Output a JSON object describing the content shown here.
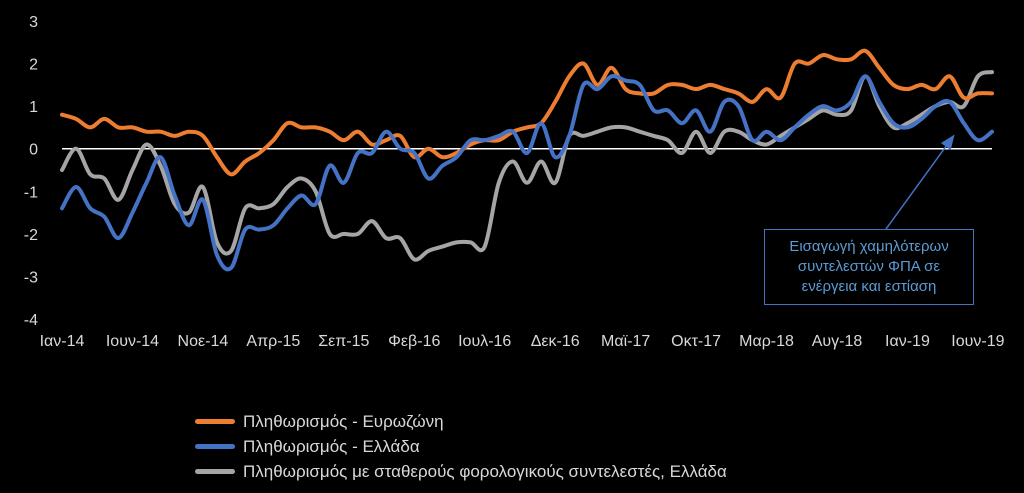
{
  "chart_data": {
    "type": "line",
    "title": "",
    "xlabel": "",
    "ylabel": "",
    "ylim": [
      -4,
      3
    ],
    "yticks": [
      -4,
      -3,
      -2,
      -1,
      0,
      1,
      2,
      3
    ],
    "xtick_labels": [
      "Ιαν-14",
      "Ιουν-14",
      "Νοε-14",
      "Απρ-15",
      "Σεπ-15",
      "Φεβ-16",
      "Ιουλ-16",
      "Δεκ-16",
      "Μαϊ-17",
      "Οκτ-17",
      "Μαρ-18",
      "Αυγ-18",
      "Ιαν-19",
      "Ιουν-19"
    ],
    "x": [
      "Ιαν-14",
      "Φεβ-14",
      "Μαρ-14",
      "Απρ-14",
      "Μαϊ-14",
      "Ιουν-14",
      "Ιουλ-14",
      "Αυγ-14",
      "Σεπ-14",
      "Οκτ-14",
      "Νοε-14",
      "Δεκ-14",
      "Ιαν-15",
      "Φεβ-15",
      "Μαρ-15",
      "Απρ-15",
      "Μαϊ-15",
      "Ιουν-15",
      "Ιουλ-15",
      "Αυγ-15",
      "Σεπ-15",
      "Οκτ-15",
      "Νοε-15",
      "Δεκ-15",
      "Ιαν-16",
      "Φεβ-16",
      "Μαρ-16",
      "Απρ-16",
      "Μαϊ-16",
      "Ιουν-16",
      "Ιουλ-16",
      "Αυγ-16",
      "Σεπ-16",
      "Οκτ-16",
      "Νοε-16",
      "Δεκ-16",
      "Ιαν-17",
      "Φεβ-17",
      "Μαρ-17",
      "Απρ-17",
      "Μαϊ-17",
      "Ιουν-17",
      "Ιουλ-17",
      "Αυγ-17",
      "Σεπ-17",
      "Οκτ-17",
      "Νοε-17",
      "Δεκ-17",
      "Ιαν-18",
      "Φεβ-18",
      "Μαρ-18",
      "Απρ-18",
      "Μαϊ-18",
      "Ιουν-18",
      "Ιουλ-18",
      "Αυγ-18",
      "Σεπ-18",
      "Οκτ-18",
      "Νοε-18",
      "Δεκ-18",
      "Ιαν-19",
      "Φεβ-19",
      "Μαρ-19",
      "Απρ-19",
      "Μαϊ-19",
      "Ιουν-19",
      "Ιουλ-19"
    ],
    "series": [
      {
        "name": "Πληθωρισμός - Ευρωζώνη",
        "color": "#ed7d31",
        "values": [
          0.8,
          0.7,
          0.5,
          0.7,
          0.5,
          0.5,
          0.4,
          0.4,
          0.3,
          0.4,
          0.3,
          -0.2,
          -0.6,
          -0.3,
          -0.1,
          0.2,
          0.6,
          0.5,
          0.5,
          0.4,
          0.2,
          0.4,
          0.1,
          0.2,
          0.3,
          -0.2,
          0.0,
          -0.2,
          -0.1,
          0.1,
          0.2,
          0.2,
          0.4,
          0.5,
          0.6,
          1.1,
          1.7,
          2.0,
          1.5,
          1.9,
          1.4,
          1.3,
          1.3,
          1.5,
          1.5,
          1.4,
          1.5,
          1.4,
          1.3,
          1.1,
          1.4,
          1.2,
          2.0,
          2.0,
          2.2,
          2.1,
          2.1,
          2.3,
          1.9,
          1.5,
          1.4,
          1.5,
          1.4,
          1.7,
          1.2,
          1.3,
          1.3
        ]
      },
      {
        "name": "Πληθωρισμός - Ελλάδα",
        "color": "#4472c4",
        "values": [
          -1.4,
          -0.9,
          -1.4,
          -1.6,
          -2.1,
          -1.5,
          -0.8,
          -0.2,
          -1.1,
          -1.8,
          -1.2,
          -2.5,
          -2.8,
          -1.9,
          -1.9,
          -1.8,
          -1.4,
          -1.1,
          -1.3,
          -0.4,
          -0.8,
          -0.1,
          -0.1,
          0.4,
          0.0,
          -0.1,
          -0.7,
          -0.4,
          -0.2,
          0.2,
          0.2,
          0.3,
          0.4,
          -0.1,
          0.6,
          -0.2,
          0.3,
          1.5,
          1.4,
          1.7,
          1.6,
          1.5,
          0.9,
          0.9,
          0.6,
          0.9,
          0.4,
          1.1,
          1.0,
          0.2,
          0.4,
          0.2,
          0.5,
          0.8,
          1.0,
          0.9,
          1.1,
          1.7,
          1.1,
          0.6,
          0.5,
          0.7,
          1.0,
          1.1,
          0.6,
          0.2,
          0.4
        ]
      },
      {
        "name": "Πληθωρισμός με σταθερούς φορολογικούς συντελεστές,  Ελλάδα",
        "color": "#a5a5a5",
        "values": [
          -0.5,
          0.0,
          -0.6,
          -0.7,
          -1.2,
          -0.5,
          0.1,
          -0.4,
          -1.3,
          -1.5,
          -0.9,
          -2.2,
          -2.4,
          -1.4,
          -1.4,
          -1.3,
          -0.9,
          -0.7,
          -1.0,
          -2.0,
          -2.0,
          -2.0,
          -1.7,
          -2.1,
          -2.1,
          -2.6,
          -2.4,
          -2.3,
          -2.2,
          -2.2,
          -2.3,
          -0.8,
          -0.3,
          -0.8,
          -0.3,
          -0.8,
          0.3,
          0.3,
          0.4,
          0.5,
          0.5,
          0.4,
          0.3,
          0.2,
          -0.1,
          0.4,
          -0.1,
          0.4,
          0.4,
          0.2,
          0.1,
          0.3,
          0.5,
          0.7,
          0.9,
          0.8,
          0.9,
          1.7,
          1.0,
          0.5,
          0.6,
          0.8,
          1.0,
          1.1,
          1.0,
          1.7,
          1.8
        ]
      }
    ],
    "annotation": {
      "text": "Εισαγωγή χαμηλότερων συντελεστών ΦΠΑ σε ενέργεια και εστίαση",
      "color": "#5b9bd5",
      "arrow_to_x": "Απρ-19",
      "arrow_to_y": 0.4
    },
    "legend_position": "bottom-left",
    "grid": false
  }
}
